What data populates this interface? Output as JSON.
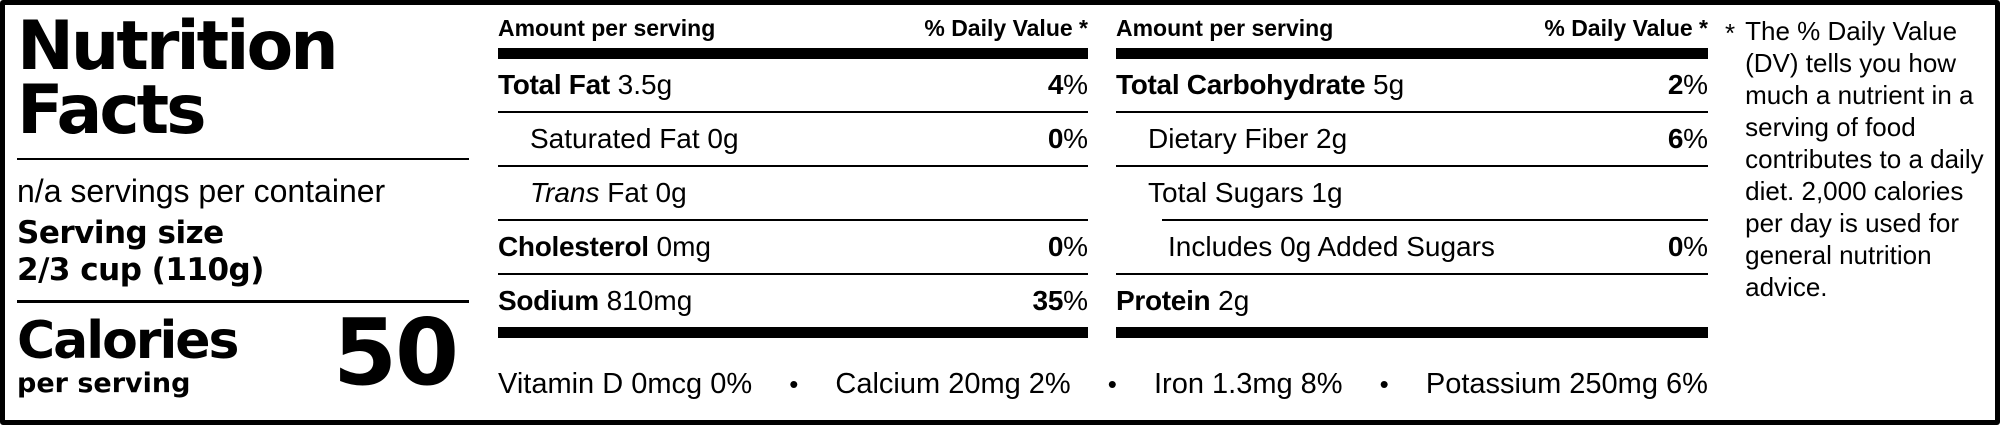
{
  "header_panel": {
    "title_line1": "Nutrition",
    "title_line2": "Facts",
    "servings_per_container": "n/a servings per container",
    "serving_size_label": "Serving size",
    "serving_size_value": "2/3 cup (110g)",
    "calories_label": "Calories",
    "calories_unit": "per serving",
    "calories_value": "50"
  },
  "columns": [
    {
      "amount_header": "Amount per serving",
      "dv_header": "% Daily Value *",
      "rows": [
        {
          "bold": "Total Fat",
          "italic": "",
          "text": "3.5g",
          "dv": "4%",
          "indent": 0,
          "divider_after": "full"
        },
        {
          "bold": "",
          "italic": "",
          "text": "Saturated Fat 0g",
          "dv": "0%",
          "indent": 1,
          "divider_after": "full"
        },
        {
          "bold": "",
          "italic": "Trans",
          "text": "Fat 0g",
          "dv": "",
          "indent": 1,
          "divider_after": "full"
        },
        {
          "bold": "Cholesterol",
          "italic": "",
          "text": "0mg",
          "dv": "0%",
          "indent": 0,
          "divider_after": "full"
        },
        {
          "bold": "Sodium",
          "italic": "",
          "text": "810mg",
          "dv": "35%",
          "indent": 0,
          "divider_after": "none"
        }
      ]
    },
    {
      "amount_header": "Amount per serving",
      "dv_header": "% Daily Value *",
      "rows": [
        {
          "bold": "Total Carbohydrate",
          "italic": "",
          "text": "5g",
          "dv": "2%",
          "indent": 0,
          "divider_after": "full"
        },
        {
          "bold": "",
          "italic": "",
          "text": "Dietary Fiber 2g",
          "dv": "6%",
          "indent": 1,
          "divider_after": "full"
        },
        {
          "bold": "",
          "italic": "",
          "text": "Total Sugars 1g",
          "dv": "",
          "indent": 1,
          "divider_after": "indent"
        },
        {
          "bold": "",
          "italic": "",
          "text": "Includes 0g Added Sugars",
          "dv": "0%",
          "indent": 2,
          "divider_after": "full"
        },
        {
          "bold": "Protein",
          "italic": "",
          "text": "2g",
          "dv": "",
          "indent": 0,
          "divider_after": "none"
        }
      ]
    }
  ],
  "micronutrients": {
    "separator": "•",
    "items": [
      "Vitamin D 0mcg 0%",
      "Calcium 20mg 2%",
      "Iron 1.3mg 8%",
      "Potassium 250mg 6%"
    ]
  },
  "footnote": {
    "marker": "*",
    "text": "The % Daily Value (DV) tells you how much a nutrient in a serving of food contributes to a daily diet. 2,000 calories per day is used for general nutrition advice."
  },
  "colors": {
    "ink": "#000000",
    "background": "#ffffff"
  }
}
